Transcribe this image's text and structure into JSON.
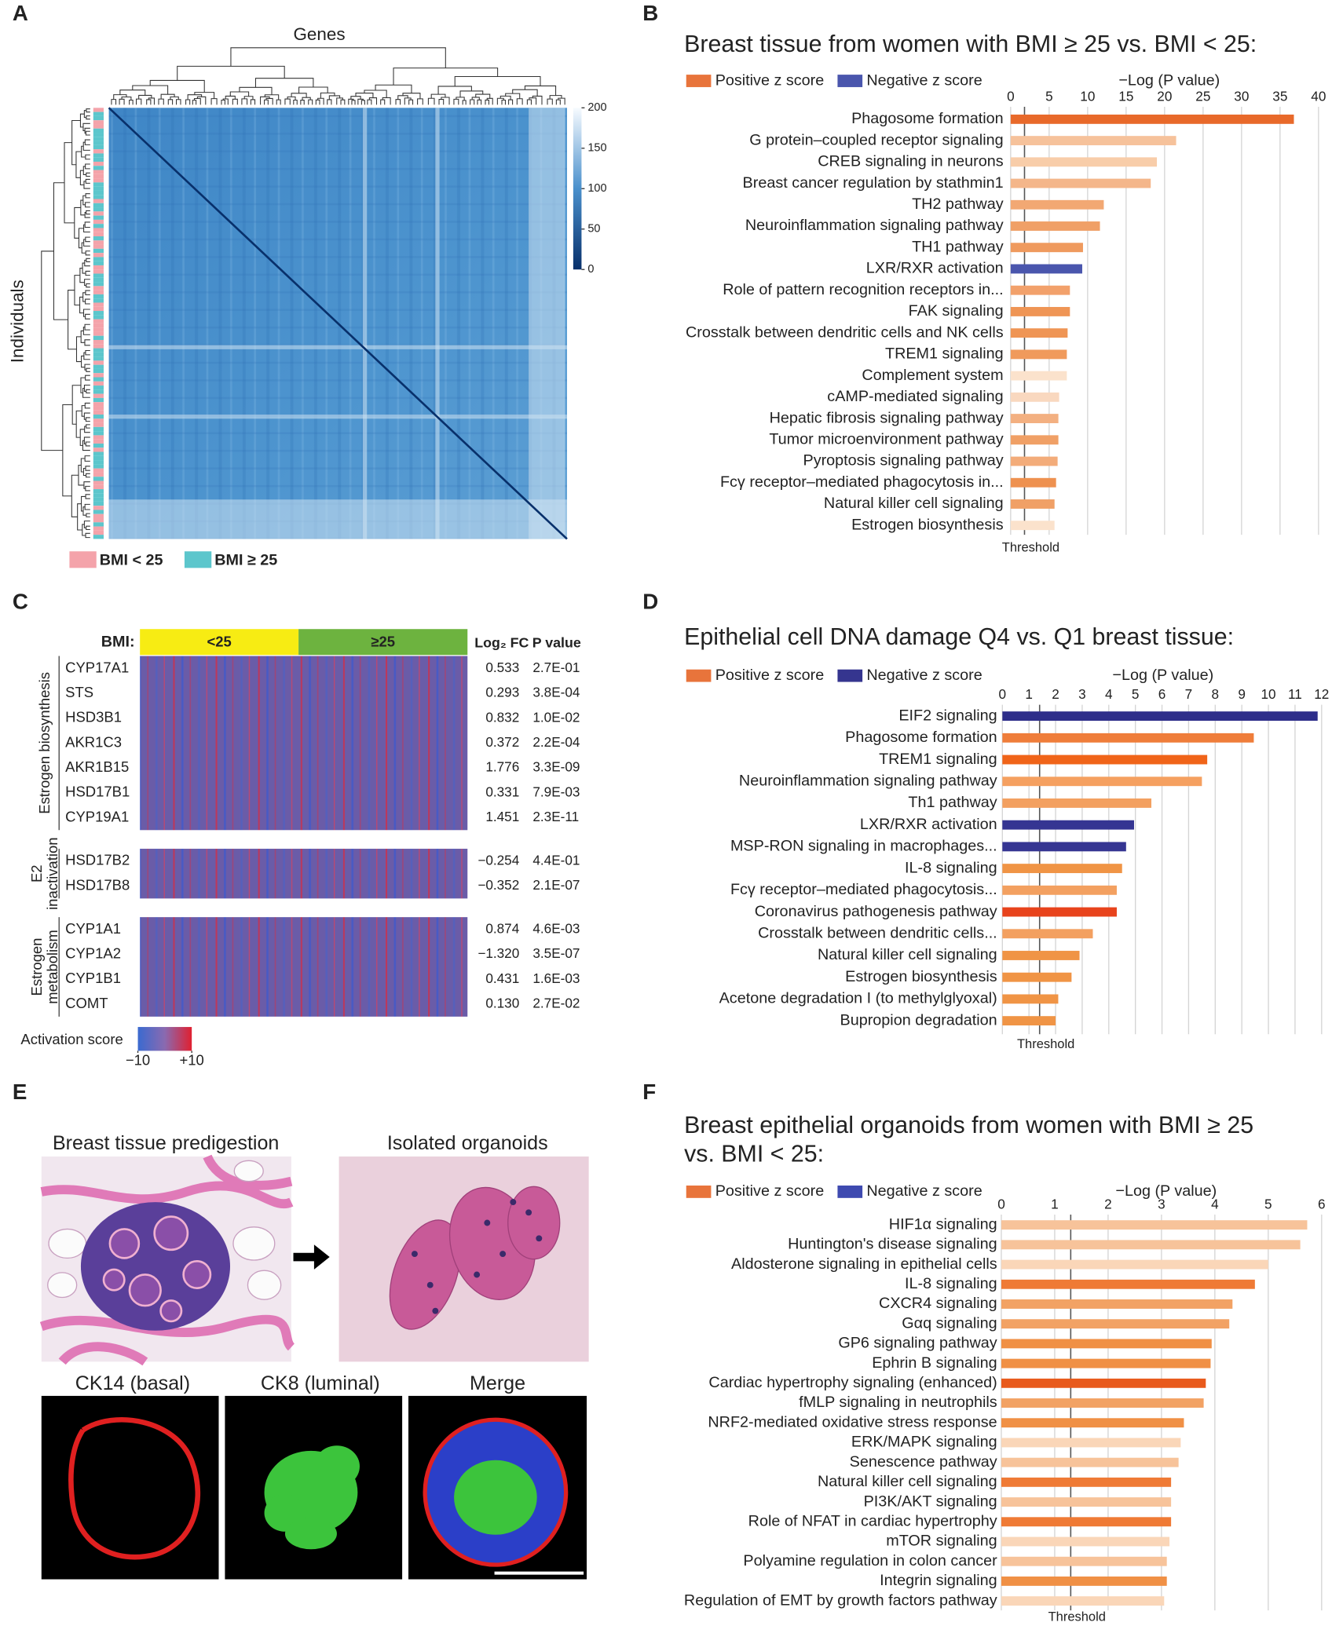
{
  "panel_labels": [
    "A",
    "B",
    "C",
    "D",
    "E",
    "F"
  ],
  "chart_data": [
    {
      "type": "heatmap-dendrogram",
      "xlabel": "Genes",
      "ylabel": "Individuals",
      "colorbar": {
        "clim": [
          0,
          200
        ],
        "ticks": [
          0,
          50,
          100,
          150,
          200
        ]
      },
      "legend": [
        {
          "name": "BMI < 25",
          "color": "#f4a3aa"
        },
        {
          "name": "BMI ≥ 25",
          "color": "#5cc6cc"
        }
      ]
    },
    {
      "type": "bar",
      "title": "Breast tissue from women with BMI ≥ 25 vs. BMI < 25:",
      "legend": [
        {
          "name": "Positive z score",
          "color": "#e8743b"
        },
        {
          "name": "Negative z score",
          "color": "#4a56ad"
        }
      ],
      "xlabel": "−Log (P value)",
      "xlim": [
        0,
        40
      ],
      "xticks": [
        0,
        5,
        10,
        15,
        20,
        25,
        30,
        35,
        40
      ],
      "grid": true,
      "threshold": {
        "value": 1.8,
        "label": "Threshold"
      },
      "categories": [
        "Phagosome formation",
        "G protein–coupled receptor signaling",
        "CREB signaling in neurons",
        "Breast cancer regulation by stathmin1",
        "TH2 pathway",
        "Neuroinflammation signaling pathway",
        "TH1 pathway",
        "LXR/RXR activation",
        "Role of pattern recognition receptors in...",
        "FAK signaling",
        "Crosstalk between dendritic cells and NK cells",
        "TREM1 signaling",
        "Complement system",
        "cAMP-mediated signaling",
        "Hepatic fibrosis signaling pathway",
        "Tumor microenvironment pathway",
        "Pyroptosis signaling pathway",
        "Fcγ receptor–mediated phagocytosis in...",
        "Natural killer cell signaling",
        "Estrogen biosynthesis"
      ],
      "values": [
        36.8,
        21.5,
        19,
        18.2,
        12.1,
        11.6,
        9.4,
        9.3,
        7.7,
        7.7,
        7.4,
        7.3,
        7.3,
        6.3,
        6.2,
        6.2,
        6.1,
        5.9,
        5.7,
        5.7
      ],
      "colors": [
        "#e8692a",
        "#f6c29b",
        "#f8cda9",
        "#f4b68a",
        "#f2a873",
        "#f0a067",
        "#ef9a5e",
        "#4a56ad",
        "#f2a16b",
        "#ef9555",
        "#ef9555",
        "#f09a5c",
        "#fbe2cc",
        "#f9d8bf",
        "#f3b081",
        "#f0a066",
        "#f3ac7a",
        "#ee9150",
        "#f0a066",
        "#fbe2cc"
      ]
    },
    {
      "type": "heatmap-table",
      "column_label": "BMI:",
      "column_groups": [
        {
          "name": "<25",
          "color": "#f7ec13"
        },
        {
          "name": "≥25",
          "color": "#6db33f"
        }
      ],
      "headers": [
        "Log₂ FC",
        "P value"
      ],
      "row_groups": [
        {
          "label": [
            "Estrogen biosynthesis"
          ],
          "rows": [
            [
              "CYP17A1",
              "0.533",
              "2.7E-01"
            ],
            [
              "STS",
              "0.293",
              "3.8E-04"
            ],
            [
              "HSD3B1",
              "0.832",
              "1.0E-02"
            ],
            [
              "AKR1C3",
              "0.372",
              "2.2E-04"
            ],
            [
              "AKR1B15",
              "1.776",
              "3.3E-09"
            ],
            [
              "HSD17B1",
              "0.331",
              "7.9E-03"
            ],
            [
              "CYP19A1",
              "1.451",
              "2.3E-11"
            ]
          ]
        },
        {
          "label": [
            "E2",
            "inactivation"
          ],
          "rows": [
            [
              "HSD17B2",
              "−0.254",
              "4.4E-01"
            ],
            [
              "HSD17B8",
              "−0.352",
              "2.1E-07"
            ]
          ]
        },
        {
          "label": [
            "Estrogen",
            "metabolism"
          ],
          "rows": [
            [
              "CYP1A1",
              "0.874",
              "4.6E-03"
            ],
            [
              "CYP1A2",
              "−1.320",
              "3.5E-07"
            ],
            [
              "CYP1B1",
              "0.431",
              "1.6E-03"
            ],
            [
              "COMT",
              "0.130",
              "2.7E-02"
            ]
          ]
        }
      ],
      "colorbar": {
        "label": "Activation score",
        "clim": [
          {
            "value": -10,
            "label": "−10"
          },
          {
            "value": 10,
            "label": "+10"
          }
        ]
      }
    },
    {
      "type": "bar",
      "title": "Epithelial cell DNA damage Q4 vs. Q1 breast tissue:",
      "legend": [
        {
          "name": "Positive z score",
          "color": "#e8743b"
        },
        {
          "name": "Negative z score",
          "color": "#35358f"
        }
      ],
      "xlabel": "−Log (P value)",
      "xlim": [
        0,
        12
      ],
      "xticks": [
        0,
        1,
        2,
        3,
        4,
        5,
        6,
        7,
        8,
        9,
        10,
        11,
        12
      ],
      "grid": true,
      "threshold": {
        "value": 1.4,
        "label": "Threshold"
      },
      "categories": [
        "EIF2 signaling",
        "Phagosome formation",
        "TREM1 signaling",
        "Neuroinflammation signaling pathway",
        "Th1 pathway",
        "LXR/RXR activation",
        "MSP-RON signaling in macrophages...",
        "IL-8 signaling",
        "Fcγ receptor–mediated phagocytosis...",
        "Coronavirus pathogenesis pathway",
        "Crosstalk between dendritic cells...",
        "Natural killer cell signaling",
        "Estrogen biosynthesis",
        "Acetone degradation I (to methylglyoxal)",
        "Bupropion degradation"
      ],
      "values": [
        11.85,
        9.45,
        7.7,
        7.5,
        5.6,
        4.95,
        4.65,
        4.5,
        4.3,
        4.3,
        3.4,
        2.9,
        2.6,
        2.1,
        2.0
      ],
      "colors": [
        "#2e2e8a",
        "#ef7d3a",
        "#f06419",
        "#f5a060",
        "#f3a060",
        "#353592",
        "#353592",
        "#f09445",
        "#f3a060",
        "#e8431c",
        "#f3a060",
        "#f09445",
        "#f09445",
        "#f09445",
        "#f09445"
      ]
    },
    {
      "type": "bar",
      "title": [
        "Breast epithelial organoids from women with BMI ≥ 25",
        "vs. BMI < 25:"
      ],
      "legend": [
        {
          "name": "Positive z score",
          "color": "#e8743b"
        },
        {
          "name": "Negative z score",
          "color": "#3e4ab0"
        }
      ],
      "xlabel": "−Log (P value)",
      "xlim": [
        0,
        6
      ],
      "xticks": [
        0,
        1,
        2,
        3,
        4,
        5,
        6
      ],
      "grid": true,
      "threshold": {
        "value": 1.3,
        "label": "Threshold"
      },
      "categories": [
        "HIF1α signaling",
        "Huntington's disease signaling",
        "Aldosterone signaling in epithelial cells",
        "IL-8 signaling",
        "CXCR4 signaling",
        "Gαq signaling",
        "GP6 signaling pathway",
        "Ephrin B signaling",
        "Cardiac hypertrophy signaling (enhanced)",
        "fMLP signaling in neutrophils",
        "NRF2-mediated oxidative stress response",
        "ERK/MAPK signaling",
        "Senescence pathway",
        "Natural killer cell signaling",
        "PI3K/AKT signaling",
        "Role of NFAT in cardiac hypertrophy",
        "mTOR signaling",
        "Polyamine regulation in colon cancer",
        "Integrin signaling",
        "Regulation of EMT by growth factors pathway"
      ],
      "values": [
        5.73,
        5.6,
        5.0,
        4.75,
        4.33,
        4.27,
        3.94,
        3.92,
        3.83,
        3.79,
        3.42,
        3.36,
        3.32,
        3.18,
        3.18,
        3.18,
        3.15,
        3.1,
        3.1,
        3.05
      ],
      "colors": [
        "#f7c39a",
        "#f7c39a",
        "#fad6b8",
        "#ef7a35",
        "#f2a264",
        "#f2a264",
        "#f09045",
        "#f09045",
        "#e85a1c",
        "#f2a264",
        "#f09045",
        "#fad6b8",
        "#f7c39a",
        "#ef7a35",
        "#f7c39a",
        "#ef7a35",
        "#fad6b8",
        "#f7c39a",
        "#f09045",
        "#fad6b8"
      ]
    }
  ],
  "panel_e": {
    "top": [
      "Breast tissue predigestion",
      "Isolated organoids"
    ],
    "bottom": [
      "CK14 (basal)",
      "CK8 (luminal)",
      "Merge"
    ]
  }
}
